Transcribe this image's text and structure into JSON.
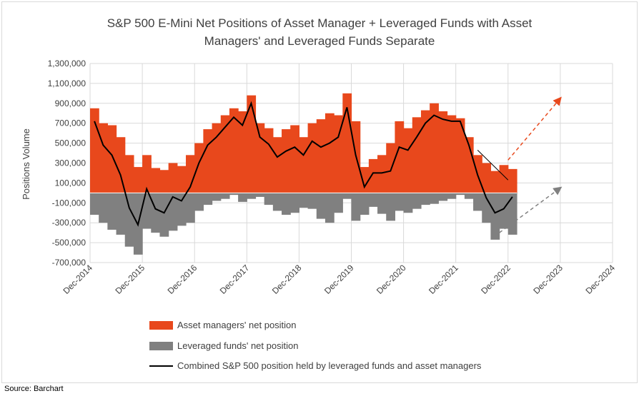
{
  "source": "Source: Barchart",
  "chart_data": {
    "type": "bar",
    "title_lines": [
      "S&P 500 E-Mini Net Positions of Asset Manager + Leveraged Funds with Asset",
      "Managers' and Leveraged Funds Separate"
    ],
    "ylabel": "Positions Volume",
    "ylim": [
      -700000,
      1300000
    ],
    "yticks": [
      {
        "value": 1300000,
        "label": "1,300,000"
      },
      {
        "value": 1100000,
        "label": "1,100,000"
      },
      {
        "value": 900000,
        "label": "900,000"
      },
      {
        "value": 700000,
        "label": "700,000"
      },
      {
        "value": 500000,
        "label": "500,000"
      },
      {
        "value": 300000,
        "label": "300,000"
      },
      {
        "value": 100000,
        "label": "100,000"
      },
      {
        "value": -100000,
        "label": "-100,000"
      },
      {
        "value": -300000,
        "label": "-300,000"
      },
      {
        "value": -500000,
        "label": "-500,000"
      },
      {
        "value": -700000,
        "label": "-700,000"
      }
    ],
    "xlim": [
      "2014-12",
      "2024-12"
    ],
    "xticks": [
      "Dec-2014",
      "Dec-2015",
      "Dec-2016",
      "Dec-2017",
      "Dec-2018",
      "Dec-2019",
      "Dec-2020",
      "Dec-2021",
      "Dec-2022",
      "Dec-2023",
      "Dec-2024"
    ],
    "grid": true,
    "legend_position": "bottom",
    "colors": {
      "asset_managers": "#e8481c",
      "leveraged_funds": "#808080",
      "combined": "#000000",
      "arrow_up": "#e8481c",
      "arrow_down": "#808080",
      "gridline": "#d9d9d9"
    },
    "dates": [
      "2014-12",
      "2015-02",
      "2015-04",
      "2015-06",
      "2015-08",
      "2015-10",
      "2015-12",
      "2016-02",
      "2016-04",
      "2016-06",
      "2016-08",
      "2016-10",
      "2016-12",
      "2017-02",
      "2017-04",
      "2017-06",
      "2017-08",
      "2017-10",
      "2017-12",
      "2018-02",
      "2018-04",
      "2018-06",
      "2018-08",
      "2018-10",
      "2018-12",
      "2019-02",
      "2019-04",
      "2019-06",
      "2019-08",
      "2019-10",
      "2019-12",
      "2020-02",
      "2020-04",
      "2020-06",
      "2020-08",
      "2020-10",
      "2020-12",
      "2021-02",
      "2021-04",
      "2021-06",
      "2021-08",
      "2021-10",
      "2021-12",
      "2022-02",
      "2022-04",
      "2022-06",
      "2022-08",
      "2022-10",
      "2022-12"
    ],
    "series": [
      {
        "name": "Asset managers' net position",
        "values": [
          850000,
          700000,
          680000,
          560000,
          380000,
          260000,
          380000,
          250000,
          230000,
          300000,
          270000,
          380000,
          500000,
          640000,
          700000,
          780000,
          850000,
          820000,
          980000,
          700000,
          650000,
          560000,
          640000,
          680000,
          560000,
          700000,
          740000,
          800000,
          780000,
          1000000,
          720000,
          260000,
          340000,
          380000,
          500000,
          720000,
          650000,
          760000,
          830000,
          900000,
          820000,
          780000,
          750000,
          560000,
          380000,
          300000,
          220000,
          280000,
          240000
        ]
      },
      {
        "name": "Leveraged funds' net position",
        "values": [
          -220000,
          -300000,
          -370000,
          -420000,
          -540000,
          -620000,
          -360000,
          -400000,
          -440000,
          -380000,
          -330000,
          -300000,
          -180000,
          -120000,
          -80000,
          -60000,
          -20000,
          -90000,
          -60000,
          -40000,
          -120000,
          -180000,
          -220000,
          -200000,
          -150000,
          -160000,
          -260000,
          -300000,
          -200000,
          -60000,
          -280000,
          -220000,
          -140000,
          -210000,
          -280000,
          -180000,
          -200000,
          -160000,
          -120000,
          -110000,
          -80000,
          -60000,
          -20000,
          -60000,
          -180000,
          -300000,
          -470000,
          -360000,
          -420000
        ]
      },
      {
        "name": "Combined S&P 500 position held by leveraged funds and asset managers",
        "values": [
          720000,
          480000,
          380000,
          180000,
          -150000,
          -320000,
          40000,
          -160000,
          -200000,
          -40000,
          -80000,
          60000,
          300000,
          480000,
          560000,
          660000,
          760000,
          680000,
          900000,
          560000,
          490000,
          360000,
          420000,
          460000,
          380000,
          520000,
          460000,
          500000,
          560000,
          860000,
          380000,
          60000,
          200000,
          200000,
          220000,
          460000,
          430000,
          560000,
          700000,
          780000,
          740000,
          720000,
          720000,
          480000,
          180000,
          -50000,
          -200000,
          -160000,
          -40000
        ]
      }
    ],
    "projections": [
      {
        "name": "asset-managers-projection",
        "from": {
          "date": "2022-12",
          "value": 330000
        },
        "to": {
          "date": "2023-12",
          "value": 950000
        }
      },
      {
        "name": "leveraged-funds-projection",
        "from": {
          "date": "2022-10",
          "value": -400000
        },
        "to": {
          "date": "2023-12",
          "value": 50000
        }
      }
    ],
    "trendline": {
      "from": {
        "date": "2022-05",
        "value": 430000
      },
      "to": {
        "date": "2022-12",
        "value": 130000
      }
    }
  }
}
